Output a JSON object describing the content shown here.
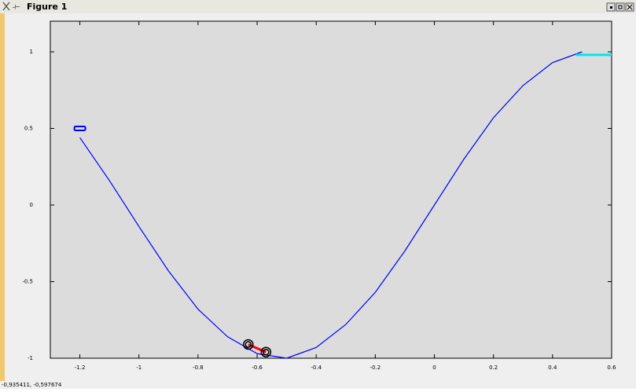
{
  "window": {
    "title": "Figure 1",
    "status": "-0,935411, -0,597674"
  },
  "chart_data": {
    "type": "line",
    "x": [
      -1.2,
      -1.1,
      -1.0,
      -0.9,
      -0.8,
      -0.7,
      -0.6,
      -0.5,
      -0.4,
      -0.3,
      -0.2,
      -0.1,
      0,
      0.1,
      0.2,
      0.3,
      0.4,
      0.5
    ],
    "series": [
      {
        "color": "#0000ff",
        "values": [
          0.44,
          0.16,
          -0.14,
          -0.43,
          -0.68,
          -0.86,
          -0.97,
          -1.0,
          -0.93,
          -0.78,
          -0.57,
          -0.3,
          0,
          0.3,
          0.57,
          0.78,
          0.93,
          1.0
        ]
      }
    ],
    "start_marker": {
      "x": -1.2,
      "y": 0.5,
      "color": "#0000ff"
    },
    "goal": {
      "x": [
        0.48,
        0.6
      ],
      "y": 0.98,
      "color": "#00e5ee"
    },
    "car": {
      "x": [
        -0.63,
        -0.57
      ],
      "y": [
        -0.91,
        -0.96
      ],
      "color": "#ff0000"
    },
    "xlim": [
      -1.3,
      0.6
    ],
    "ylim": [
      -1,
      1.2
    ],
    "xticks": [
      -1.2,
      -1,
      -0.8,
      -0.6,
      -0.4,
      -0.2,
      0,
      0.2,
      0.4,
      0.6
    ],
    "yticks": [
      -1,
      -0.5,
      0,
      0.5,
      1
    ]
  }
}
